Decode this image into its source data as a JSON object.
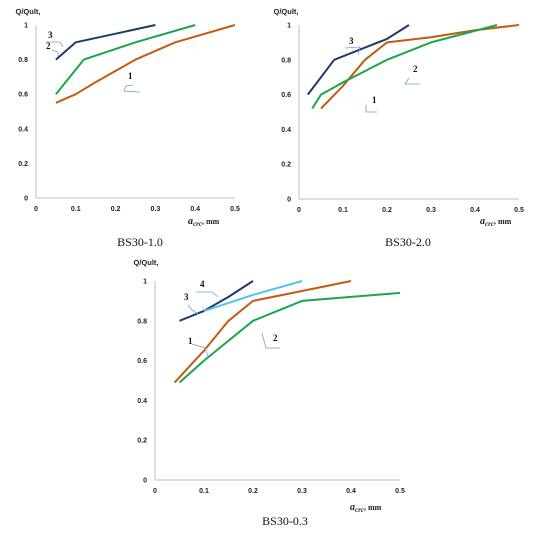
{
  "chart_data": [
    {
      "type": "line",
      "title": "BS30-1.0",
      "ylabel": "Q/Qult,",
      "xlabel": "acrc",
      "xlabel_subscript": "crc",
      "xlabel_base": "a",
      "xlabel_unit": ", mm",
      "xlim": [
        0,
        0.5
      ],
      "ylim": [
        0,
        1
      ],
      "xticks": [
        "0",
        "0.1",
        "0.2",
        "0.3",
        "0.4",
        "0.5"
      ],
      "yticks": [
        "0",
        "0.2",
        "0.4",
        "0.6",
        "0.8",
        "1"
      ],
      "grid": false,
      "series": [
        {
          "name": "1",
          "color": "#c55a11",
          "x": [
            0.05,
            0.1,
            0.15,
            0.25,
            0.35,
            0.5
          ],
          "y": [
            0.55,
            0.6,
            0.67,
            0.8,
            0.9,
            1.0
          ]
        },
        {
          "name": "2",
          "color": "#1aa64a",
          "x": [
            0.05,
            0.12,
            0.25,
            0.4
          ],
          "y": [
            0.6,
            0.8,
            0.9,
            1.0
          ]
        },
        {
          "name": "3",
          "color": "#1f3a6e",
          "x": [
            0.05,
            0.1,
            0.2,
            0.3
          ],
          "y": [
            0.8,
            0.9,
            0.95,
            1.0
          ]
        }
      ]
    },
    {
      "type": "line",
      "title": "BS30-2.0",
      "ylabel": "Q/Qult,",
      "xlabel": "acrc",
      "xlabel_subscript": "crc",
      "xlabel_base": "a",
      "xlabel_unit": ", mm",
      "xlim": [
        0,
        0.5
      ],
      "ylim": [
        0,
        1
      ],
      "xticks": [
        "0",
        "0.1",
        "0.2",
        "0.3",
        "0.4",
        "0.5"
      ],
      "yticks": [
        "0",
        "0.2",
        "0.4",
        "0.6",
        "0.8",
        "1"
      ],
      "grid": false,
      "series": [
        {
          "name": "1",
          "color": "#c55a11",
          "x": [
            0.05,
            0.1,
            0.15,
            0.2,
            0.3,
            0.4,
            0.5
          ],
          "y": [
            0.52,
            0.65,
            0.8,
            0.9,
            0.93,
            0.97,
            1.0
          ]
        },
        {
          "name": "2",
          "color": "#1aa64a",
          "x": [
            0.03,
            0.05,
            0.1,
            0.2,
            0.3,
            0.45
          ],
          "y": [
            0.52,
            0.6,
            0.67,
            0.8,
            0.9,
            1.0
          ]
        },
        {
          "name": "3",
          "color": "#1f3a6e",
          "x": [
            0.02,
            0.08,
            0.15,
            0.2,
            0.25
          ],
          "y": [
            0.6,
            0.8,
            0.87,
            0.92,
            1.0
          ]
        }
      ]
    },
    {
      "type": "line",
      "title": "BS30-0.3",
      "ylabel": "Q/Qult,",
      "xlabel": "acrc",
      "xlabel_subscript": "crc",
      "xlabel_base": "a",
      "xlabel_unit": ", mm",
      "xlim": [
        0,
        0.5
      ],
      "ylim": [
        0,
        1
      ],
      "xticks": [
        "0",
        "0.1",
        "0.2",
        "0.3",
        "0.4",
        "0.5"
      ],
      "yticks": [
        "0",
        "0.2",
        "0.4",
        "0.6",
        "0.8",
        "1"
      ],
      "grid": false,
      "series": [
        {
          "name": "1",
          "color": "#c55a11",
          "x": [
            0.04,
            0.1,
            0.15,
            0.2,
            0.3,
            0.4
          ],
          "y": [
            0.49,
            0.65,
            0.8,
            0.9,
            0.95,
            1.0
          ]
        },
        {
          "name": "2",
          "color": "#1aa64a",
          "x": [
            0.05,
            0.1,
            0.2,
            0.3,
            0.5
          ],
          "y": [
            0.49,
            0.6,
            0.8,
            0.9,
            0.94
          ]
        },
        {
          "name": "3",
          "color": "#1f3a6e",
          "x": [
            0.05,
            0.1,
            0.15,
            0.2
          ],
          "y": [
            0.8,
            0.85,
            0.92,
            1.0
          ]
        },
        {
          "name": "4",
          "color": "#4fc3f0",
          "x": [
            0.1,
            0.2,
            0.3
          ],
          "y": [
            0.85,
            0.93,
            1.0
          ]
        }
      ]
    }
  ]
}
